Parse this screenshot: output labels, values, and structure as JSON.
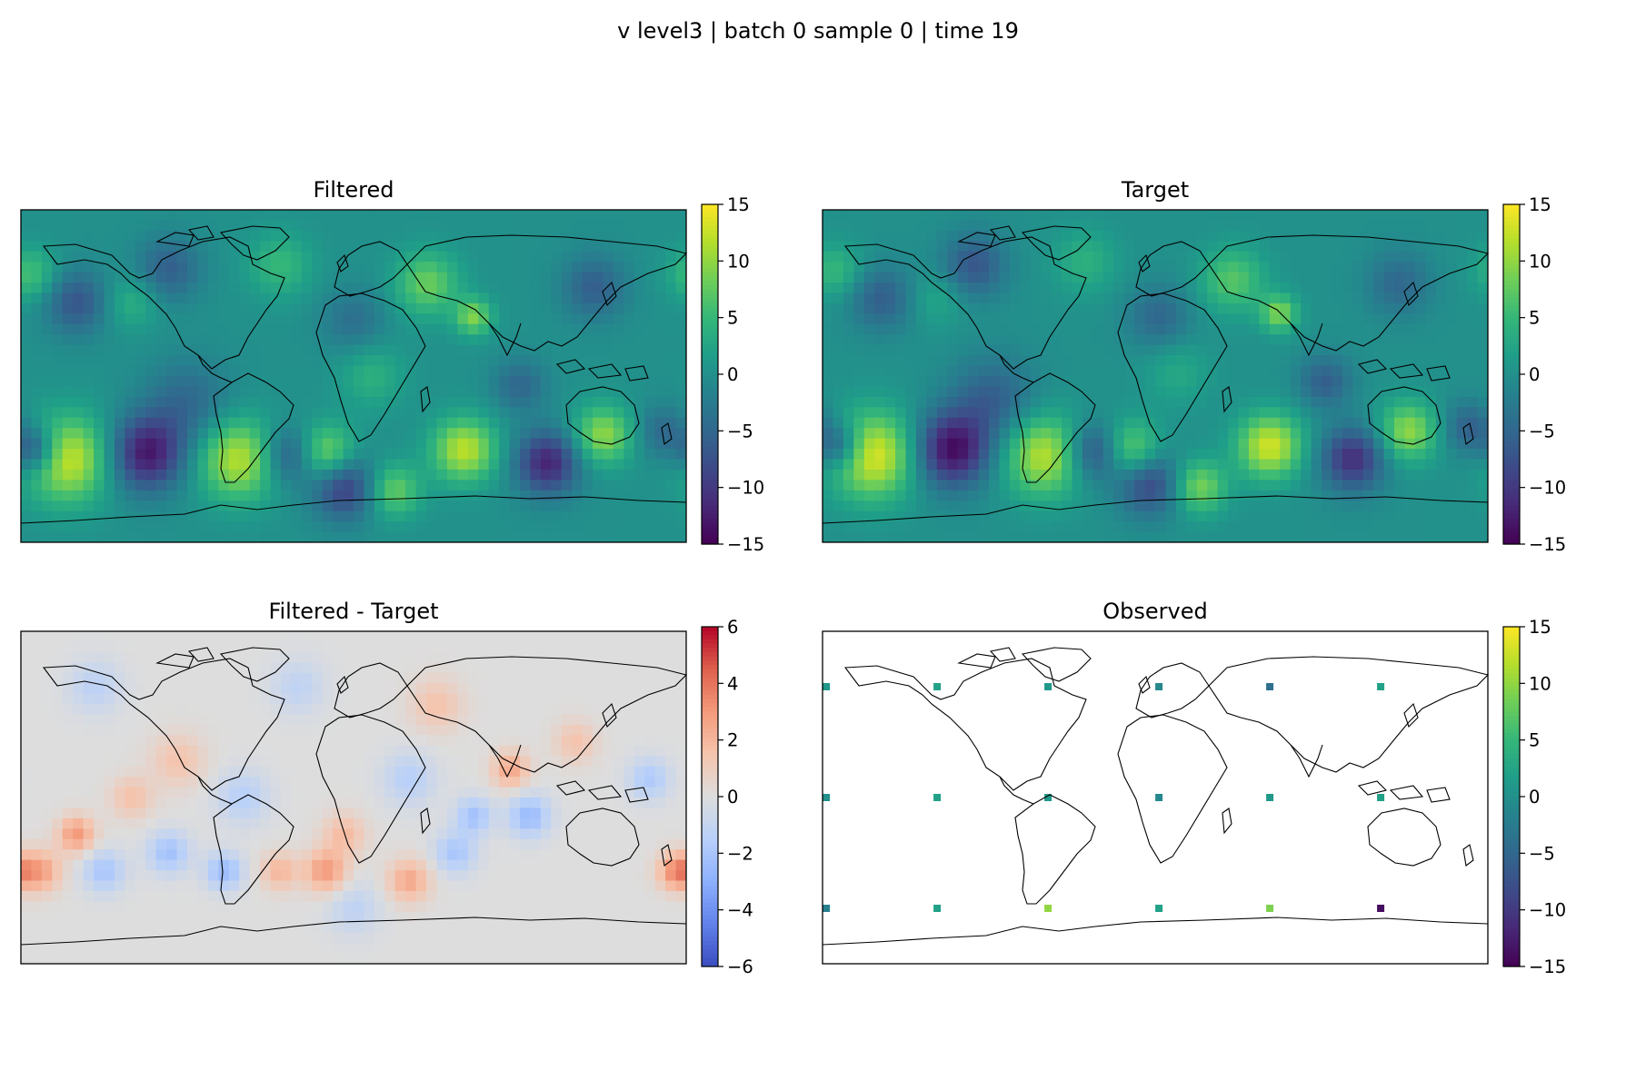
{
  "figure": {
    "suptitle": "v level3 | batch 0 sample 0 | time 19"
  },
  "chart_data": [
    {
      "type": "heatmap",
      "title": "Filtered",
      "colormap": "viridis",
      "colorbar": {
        "min": -15,
        "max": 15,
        "ticks": [
          15,
          10,
          5,
          0,
          -5,
          -10,
          -15
        ]
      },
      "extent": {
        "lon": [
          -180,
          180
        ],
        "lat": [
          -90,
          90
        ]
      },
      "coastlines": true,
      "blobs": [
        {
          "lon": -155,
          "lat": -45,
          "v": 13,
          "r": 16
        },
        {
          "lon": -112,
          "lat": -42,
          "v": -13,
          "r": 14
        },
        {
          "lon": -62,
          "lat": -45,
          "v": 12,
          "r": 15
        },
        {
          "lon": -15,
          "lat": -42,
          "v": 10,
          "r": 11
        },
        {
          "lon": -35,
          "lat": -43,
          "v": -8,
          "r": 11
        },
        {
          "lon": -5,
          "lat": -60,
          "v": -10,
          "r": 12
        },
        {
          "lon": 22,
          "lat": -62,
          "v": 8,
          "r": 10
        },
        {
          "lon": 60,
          "lat": -40,
          "v": 12,
          "r": 12
        },
        {
          "lon": 105,
          "lat": -47,
          "v": -12,
          "r": 12
        },
        {
          "lon": 135,
          "lat": -32,
          "v": 10,
          "r": 11
        },
        {
          "lon": 168,
          "lat": -30,
          "v": -5,
          "r": 10
        },
        {
          "lon": -172,
          "lat": -40,
          "v": -10,
          "r": 9
        },
        {
          "lon": -90,
          "lat": -15,
          "v": -5,
          "r": 16
        },
        {
          "lon": -100,
          "lat": 58,
          "v": -6,
          "r": 12
        },
        {
          "lon": -40,
          "lat": 60,
          "v": 5,
          "r": 12
        },
        {
          "lon": 40,
          "lat": 50,
          "v": 8,
          "r": 12
        },
        {
          "lon": 65,
          "lat": 32,
          "v": 9,
          "r": 7
        },
        {
          "lon": 130,
          "lat": 48,
          "v": -6,
          "r": 12
        },
        {
          "lon": -150,
          "lat": 40,
          "v": -7,
          "r": 12
        },
        {
          "lon": -175,
          "lat": 55,
          "v": 6,
          "r": 10
        },
        {
          "lon": -120,
          "lat": 40,
          "v": 4,
          "r": 10
        },
        {
          "lon": 0,
          "lat": 30,
          "v": -4,
          "r": 12
        },
        {
          "lon": 10,
          "lat": 0,
          "v": 4,
          "r": 12
        },
        {
          "lon": 90,
          "lat": -5,
          "v": -5,
          "r": 10
        }
      ]
    },
    {
      "type": "heatmap",
      "title": "Target",
      "colormap": "viridis",
      "colorbar": {
        "min": -15,
        "max": 15,
        "ticks": [
          15,
          10,
          5,
          0,
          -5,
          -10,
          -15
        ]
      },
      "extent": {
        "lon": [
          -180,
          180
        ],
        "lat": [
          -90,
          90
        ]
      },
      "coastlines": true,
      "blobs": [
        {
          "lon": -153,
          "lat": -43,
          "v": 14,
          "r": 16
        },
        {
          "lon": -110,
          "lat": -40,
          "v": -14,
          "r": 14
        },
        {
          "lon": -60,
          "lat": -43,
          "v": 12,
          "r": 15
        },
        {
          "lon": -13,
          "lat": -40,
          "v": 9,
          "r": 11
        },
        {
          "lon": -33,
          "lat": -41,
          "v": -9,
          "r": 11
        },
        {
          "lon": -3,
          "lat": -58,
          "v": -9,
          "r": 12
        },
        {
          "lon": 24,
          "lat": -60,
          "v": 9,
          "r": 10
        },
        {
          "lon": 62,
          "lat": -38,
          "v": 13,
          "r": 12
        },
        {
          "lon": 107,
          "lat": -45,
          "v": -11,
          "r": 12
        },
        {
          "lon": 137,
          "lat": -30,
          "v": 10,
          "r": 11
        },
        {
          "lon": 170,
          "lat": -28,
          "v": -6,
          "r": 10
        },
        {
          "lon": -170,
          "lat": -38,
          "v": -9,
          "r": 9
        },
        {
          "lon": -88,
          "lat": -13,
          "v": -6,
          "r": 16
        },
        {
          "lon": -98,
          "lat": 60,
          "v": -7,
          "r": 12
        },
        {
          "lon": -38,
          "lat": 62,
          "v": 4,
          "r": 12
        },
        {
          "lon": 42,
          "lat": 52,
          "v": 7,
          "r": 12
        },
        {
          "lon": 67,
          "lat": 34,
          "v": 9,
          "r": 7
        },
        {
          "lon": 132,
          "lat": 50,
          "v": -5,
          "r": 12
        },
        {
          "lon": -148,
          "lat": 42,
          "v": -6,
          "r": 12
        },
        {
          "lon": -173,
          "lat": 57,
          "v": 5,
          "r": 10
        },
        {
          "lon": -118,
          "lat": 42,
          "v": 3,
          "r": 10
        },
        {
          "lon": 2,
          "lat": 32,
          "v": -5,
          "r": 12
        },
        {
          "lon": 12,
          "lat": 2,
          "v": 3,
          "r": 12
        },
        {
          "lon": 92,
          "lat": -3,
          "v": -6,
          "r": 10
        }
      ]
    },
    {
      "type": "heatmap",
      "title": "Filtered - Target",
      "colormap": "coolwarm",
      "colorbar": {
        "min": -6,
        "max": 6,
        "ticks": [
          6,
          4,
          2,
          0,
          -2,
          -4,
          -6
        ]
      },
      "extent": {
        "lon": [
          -180,
          180
        ],
        "lat": [
          -90,
          90
        ]
      },
      "coastlines": true,
      "blobs": [
        {
          "lon": -150,
          "lat": -20,
          "v": 3.0,
          "r": 7
        },
        {
          "lon": -170,
          "lat": -40,
          "v": 2.8,
          "r": 8
        },
        {
          "lon": -135,
          "lat": -40,
          "v": -2.0,
          "r": 8
        },
        {
          "lon": -100,
          "lat": -30,
          "v": -2.2,
          "r": 8
        },
        {
          "lon": -70,
          "lat": -40,
          "v": -2.5,
          "r": 7
        },
        {
          "lon": -40,
          "lat": -40,
          "v": 2.0,
          "r": 7
        },
        {
          "lon": -15,
          "lat": -40,
          "v": 3.0,
          "r": 8
        },
        {
          "lon": -5,
          "lat": -20,
          "v": 1.8,
          "r": 8
        },
        {
          "lon": 30,
          "lat": -45,
          "v": 2.5,
          "r": 8
        },
        {
          "lon": 55,
          "lat": -30,
          "v": -2.0,
          "r": 8
        },
        {
          "lon": 65,
          "lat": -10,
          "v": -2.2,
          "r": 7
        },
        {
          "lon": 95,
          "lat": -10,
          "v": -2.5,
          "r": 8
        },
        {
          "lon": 85,
          "lat": 15,
          "v": 2.5,
          "r": 7
        },
        {
          "lon": 175,
          "lat": -40,
          "v": 3.5,
          "r": 7
        },
        {
          "lon": -95,
          "lat": 20,
          "v": 1.5,
          "r": 10
        },
        {
          "lon": 30,
          "lat": 10,
          "v": -1.5,
          "r": 10
        },
        {
          "lon": -30,
          "lat": 60,
          "v": -1.2,
          "r": 10
        },
        {
          "lon": 45,
          "lat": 50,
          "v": 1.5,
          "r": 10
        },
        {
          "lon": -60,
          "lat": 0,
          "v": -1.5,
          "r": 10
        },
        {
          "lon": 120,
          "lat": 30,
          "v": 1.5,
          "r": 8
        },
        {
          "lon": -140,
          "lat": 60,
          "v": -1.3,
          "r": 10
        },
        {
          "lon": 160,
          "lat": 10,
          "v": -1.8,
          "r": 8
        },
        {
          "lon": -120,
          "lat": 0,
          "v": 1.6,
          "r": 8
        },
        {
          "lon": 0,
          "lat": -60,
          "v": -1.2,
          "r": 10
        }
      ]
    },
    {
      "type": "scatter",
      "title": "Observed",
      "colormap": "viridis",
      "colorbar": {
        "min": -15,
        "max": 15,
        "ticks": [
          15,
          10,
          5,
          0,
          -5,
          -10,
          -15
        ]
      },
      "extent": {
        "lon": [
          -180,
          180
        ],
        "lat": [
          -90,
          90
        ]
      },
      "coastlines": true,
      "points": [
        {
          "lon": -178,
          "lat": 60,
          "v": 1
        },
        {
          "lon": -118,
          "lat": 60,
          "v": 2
        },
        {
          "lon": -58,
          "lat": 60,
          "v": 1
        },
        {
          "lon": 2,
          "lat": 60,
          "v": -1
        },
        {
          "lon": 62,
          "lat": 60,
          "v": -4
        },
        {
          "lon": 122,
          "lat": 60,
          "v": 2
        },
        {
          "lon": -178,
          "lat": 0,
          "v": 0
        },
        {
          "lon": -118,
          "lat": 0,
          "v": 2
        },
        {
          "lon": -58,
          "lat": 0,
          "v": 1
        },
        {
          "lon": 2,
          "lat": 0,
          "v": -1
        },
        {
          "lon": 62,
          "lat": 0,
          "v": 1
        },
        {
          "lon": 122,
          "lat": 0,
          "v": 2
        },
        {
          "lon": -178,
          "lat": -60,
          "v": -2
        },
        {
          "lon": -118,
          "lat": -60,
          "v": 2
        },
        {
          "lon": -58,
          "lat": -60,
          "v": 10
        },
        {
          "lon": 2,
          "lat": -60,
          "v": 2
        },
        {
          "lon": 62,
          "lat": -60,
          "v": 9
        },
        {
          "lon": 122,
          "lat": -60,
          "v": -14
        }
      ]
    }
  ]
}
